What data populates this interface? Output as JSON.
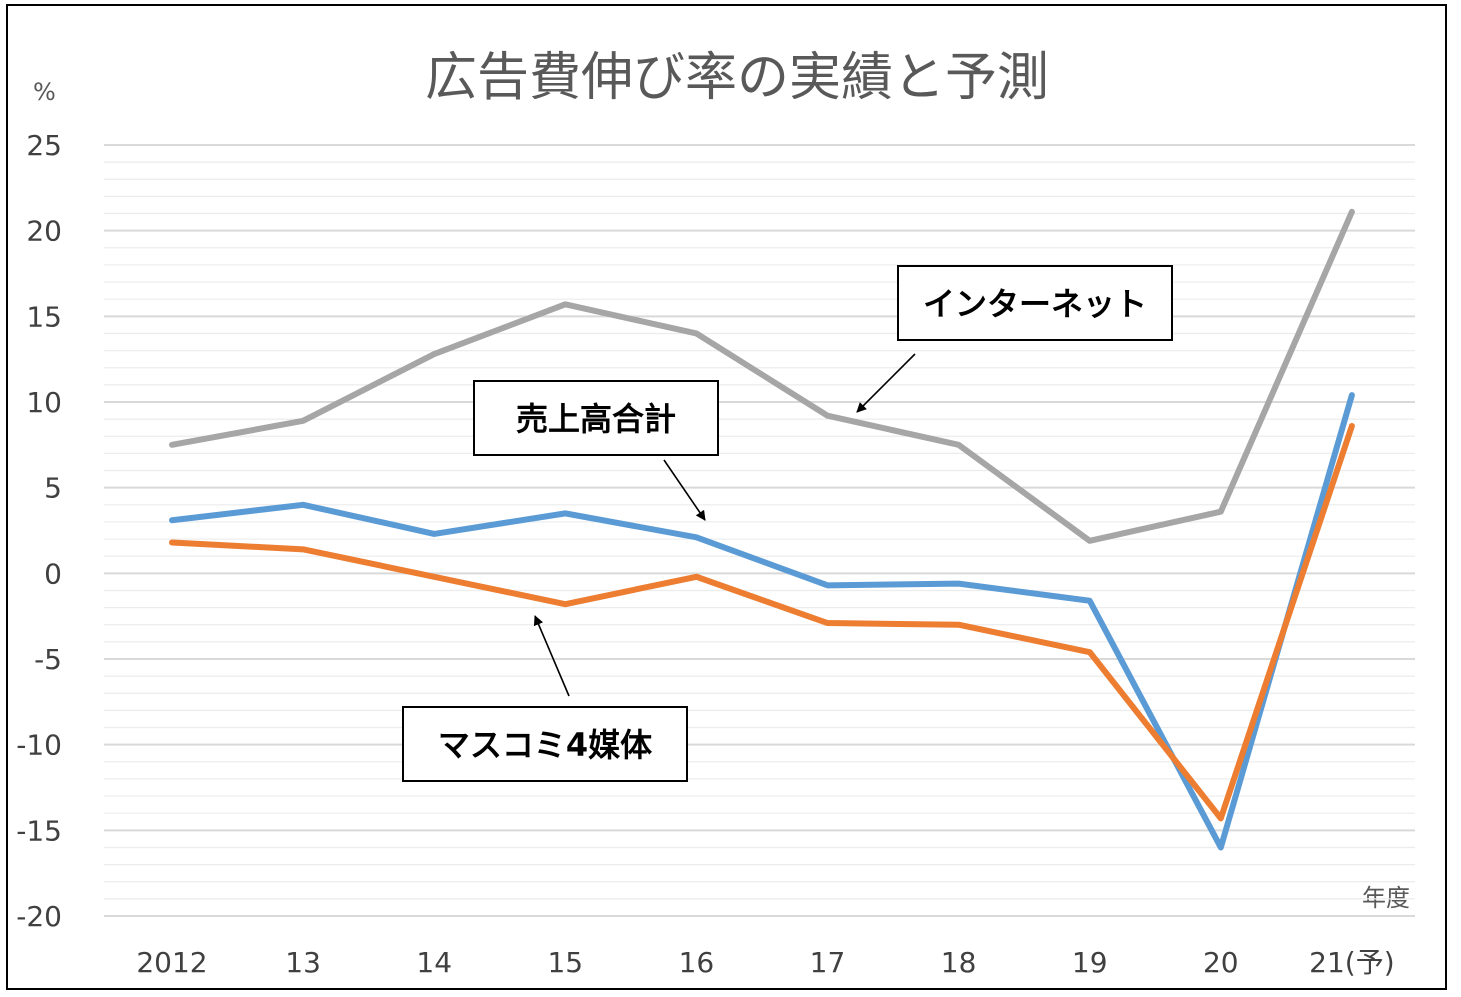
{
  "chart_data": {
    "type": "line",
    "title": "広告費伸び率の実績と予測",
    "y_unit": "%",
    "x_unit": "年度",
    "categories": [
      "2012",
      "13",
      "14",
      "15",
      "16",
      "17",
      "18",
      "19",
      "20",
      "21(予)"
    ],
    "ylim": [
      -20,
      25
    ],
    "y_ticks": [
      "25",
      "20",
      "15",
      "10",
      "5",
      "0",
      "-5",
      "-10",
      "-15",
      "-20"
    ],
    "grid": true,
    "series": [
      {
        "name": "インターネット",
        "color": "#a6a6a6",
        "values": [
          7.5,
          8.9,
          12.8,
          15.7,
          14.0,
          9.2,
          7.5,
          1.9,
          3.6,
          21.1
        ]
      },
      {
        "name": "売上高合計",
        "color": "#5b9bd5",
        "values": [
          3.1,
          4.0,
          2.3,
          3.5,
          2.1,
          -0.7,
          -0.6,
          -1.6,
          -16.0,
          10.4
        ]
      },
      {
        "name": "マスコミ4媒体",
        "color": "#ed7d31",
        "values": [
          1.8,
          1.4,
          -0.2,
          -1.8,
          -0.2,
          -2.9,
          -3.0,
          -4.6,
          -14.3,
          8.6
        ]
      }
    ],
    "annotations": [
      "インターネット",
      "売上高合計",
      "マスコミ4媒体"
    ]
  }
}
